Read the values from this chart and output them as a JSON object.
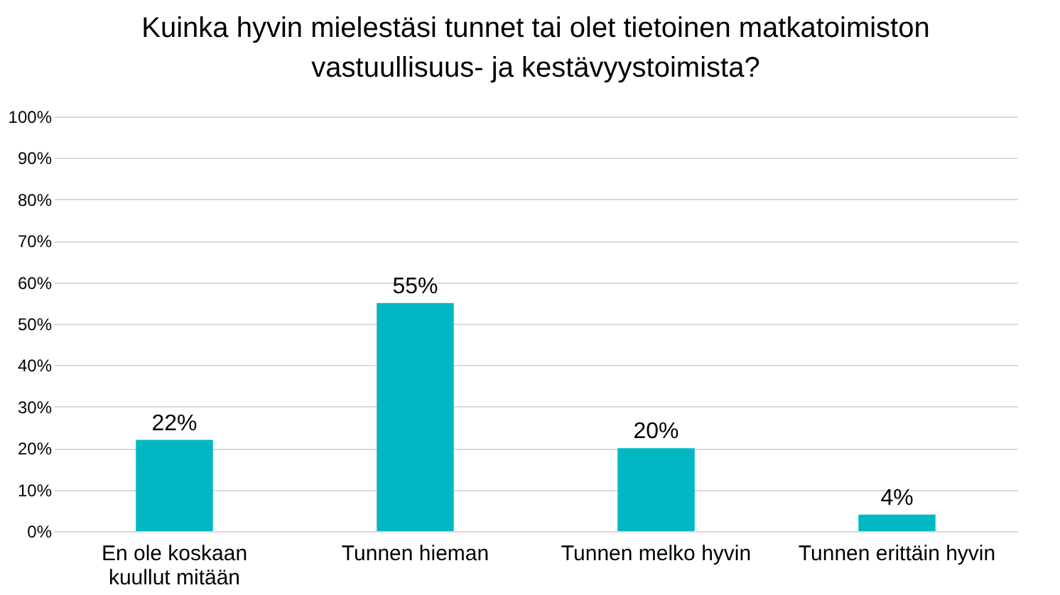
{
  "chart_data": {
    "type": "bar",
    "title": "Kuinka hyvin mielestäsi tunnet tai olet tietoinen matkatoimiston vastuullisuus- ja kestävyystoimista?",
    "categories": [
      "En ole koskaan kuullut mitään",
      "Tunnen hieman",
      "Tunnen melko hyvin",
      "Tunnen erittäin hyvin"
    ],
    "values": [
      22,
      55,
      20,
      4
    ],
    "color": "#00b8c4",
    "ylim": [
      0,
      100
    ],
    "yticks": [
      {
        "value": 0,
        "label": "0%"
      },
      {
        "value": 10,
        "label": "10%"
      },
      {
        "value": 20,
        "label": "20%"
      },
      {
        "value": 30,
        "label": "30%"
      },
      {
        "value": 40,
        "label": "40%"
      },
      {
        "value": 50,
        "label": "50%"
      },
      {
        "value": 60,
        "label": "60%"
      },
      {
        "value": 70,
        "label": "70%"
      },
      {
        "value": 80,
        "label": "80%"
      },
      {
        "value": 90,
        "label": "90%"
      },
      {
        "value": 100,
        "label": "100%"
      }
    ],
    "value_labels": [
      "22%",
      "55%",
      "20%",
      "4%"
    ],
    "grid": "y"
  }
}
